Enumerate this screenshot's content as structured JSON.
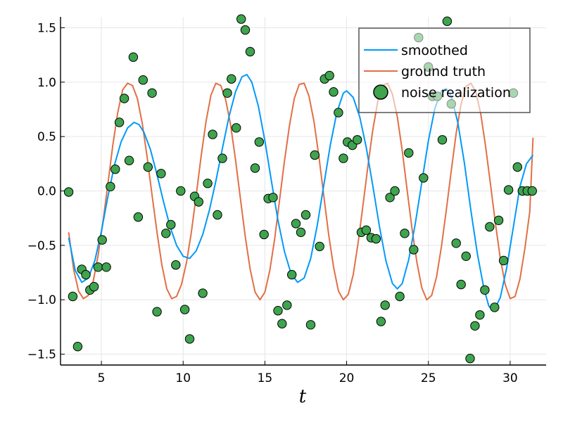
{
  "chart_data": {
    "type": "line",
    "title": "",
    "xlabel": "t",
    "ylabel": "",
    "xlim": [
      2.5,
      32.2
    ],
    "ylim": [
      -1.6,
      1.6
    ],
    "xticks": [
      5,
      10,
      15,
      20,
      25,
      30
    ],
    "xtick_labels": [
      "5",
      "10",
      "15",
      "20",
      "25",
      "30"
    ],
    "yticks": [
      -1.5,
      -1.0,
      -0.5,
      0.0,
      0.5,
      1.0,
      1.5
    ],
    "ytick_labels": [
      "−1.5",
      "−1.0",
      "−0.5",
      "0.0",
      "0.5",
      "1.0",
      "1.5"
    ],
    "grid": true,
    "legend_position": "top-right",
    "colors": {
      "smoothed": "#009AFA",
      "ground_truth": "#E26F46",
      "noise": "#3EA44E"
    },
    "series": [
      {
        "name": "smoothed",
        "kind": "line",
        "color": "#009AFA",
        "x": [
          3.0,
          3.4,
          3.8,
          4.2,
          4.6,
          5.0,
          5.4,
          5.8,
          6.2,
          6.6,
          7.0,
          7.3,
          7.6,
          8.0,
          8.4,
          8.8,
          9.2,
          9.6,
          10.0,
          10.4,
          10.8,
          11.2,
          11.6,
          12.0,
          12.4,
          12.8,
          13.2,
          13.6,
          13.9,
          14.2,
          14.6,
          15.0,
          15.4,
          15.8,
          16.2,
          16.6,
          17.0,
          17.4,
          17.8,
          18.2,
          18.6,
          19.0,
          19.4,
          19.8,
          20.0,
          20.4,
          20.8,
          21.2,
          21.6,
          22.0,
          22.4,
          22.8,
          23.1,
          23.4,
          23.8,
          24.2,
          24.6,
          25.0,
          25.4,
          25.8,
          26.1,
          26.4,
          26.8,
          27.2,
          27.6,
          28.0,
          28.4,
          28.7,
          29.0,
          29.4,
          29.8,
          30.2,
          30.6,
          31.0,
          31.4
        ],
        "y": [
          -0.43,
          -0.73,
          -0.84,
          -0.8,
          -0.64,
          -0.37,
          -0.05,
          0.24,
          0.45,
          0.58,
          0.63,
          0.61,
          0.54,
          0.38,
          0.15,
          -0.1,
          -0.33,
          -0.5,
          -0.6,
          -0.62,
          -0.55,
          -0.4,
          -0.18,
          0.09,
          0.39,
          0.68,
          0.91,
          1.05,
          1.07,
          1.0,
          0.78,
          0.46,
          0.09,
          -0.27,
          -0.56,
          -0.76,
          -0.84,
          -0.8,
          -0.62,
          -0.32,
          0.05,
          0.42,
          0.72,
          0.9,
          0.92,
          0.86,
          0.68,
          0.4,
          0.05,
          -0.32,
          -0.64,
          -0.85,
          -0.9,
          -0.85,
          -0.63,
          -0.3,
          0.08,
          0.46,
          0.76,
          0.92,
          0.94,
          0.87,
          0.63,
          0.26,
          -0.18,
          -0.58,
          -0.9,
          -1.06,
          -1.1,
          -0.98,
          -0.7,
          -0.33,
          0.04,
          0.25,
          0.33
        ]
      },
      {
        "name": "ground truth",
        "kind": "line",
        "color": "#E26F46",
        "x": [
          3.0,
          3.3,
          3.6,
          3.9,
          4.2,
          4.5,
          4.8,
          5.1,
          5.4,
          5.7,
          6.0,
          6.3,
          6.6,
          6.9,
          7.2,
          7.5,
          7.8,
          8.1,
          8.4,
          8.7,
          9.0,
          9.3,
          9.6,
          9.9,
          10.2,
          10.5,
          10.8,
          11.1,
          11.4,
          11.7,
          12.0,
          12.3,
          12.6,
          12.9,
          13.2,
          13.5,
          13.8,
          14.1,
          14.4,
          14.7,
          15.0,
          15.3,
          15.6,
          15.9,
          16.2,
          16.5,
          16.8,
          17.1,
          17.4,
          17.7,
          18.0,
          18.3,
          18.6,
          18.9,
          19.2,
          19.5,
          19.8,
          20.1,
          20.4,
          20.7,
          21.0,
          21.3,
          21.6,
          21.9,
          22.2,
          22.5,
          22.8,
          23.1,
          23.4,
          23.7,
          24.0,
          24.3,
          24.6,
          24.9,
          25.2,
          25.5,
          25.8,
          26.1,
          26.4,
          26.7,
          27.0,
          27.3,
          27.6,
          27.9,
          28.2,
          28.5,
          28.8,
          29.1,
          29.4,
          29.7,
          30.0,
          30.3,
          30.6,
          30.9,
          31.2,
          31.4
        ],
        "y": [
          -0.38,
          -0.72,
          -0.92,
          -0.99,
          -0.96,
          -0.83,
          -0.59,
          -0.28,
          0.07,
          0.42,
          0.72,
          0.93,
          0.99,
          0.97,
          0.85,
          0.62,
          0.31,
          -0.04,
          -0.38,
          -0.68,
          -0.9,
          -0.99,
          -0.97,
          -0.86,
          -0.66,
          -0.38,
          -0.04,
          0.32,
          0.64,
          0.88,
          0.99,
          0.97,
          0.84,
          0.61,
          0.29,
          -0.07,
          -0.42,
          -0.72,
          -0.93,
          -1.0,
          -0.93,
          -0.73,
          -0.44,
          -0.08,
          0.28,
          0.6,
          0.85,
          0.98,
          0.99,
          0.87,
          0.64,
          0.32,
          -0.04,
          -0.4,
          -0.7,
          -0.92,
          -1.0,
          -0.95,
          -0.77,
          -0.48,
          -0.13,
          0.23,
          0.56,
          0.82,
          0.97,
          0.99,
          0.89,
          0.68,
          0.37,
          0.01,
          -0.35,
          -0.66,
          -0.89,
          -1.0,
          -0.96,
          -0.79,
          -0.51,
          -0.17,
          0.19,
          0.53,
          0.8,
          0.96,
          0.99,
          0.91,
          0.71,
          0.41,
          0.06,
          -0.3,
          -0.62,
          -0.86,
          -0.99,
          -0.97,
          -0.81,
          -0.53,
          -0.19,
          0.49
        ]
      },
      {
        "name": "noise realization",
        "kind": "scatter",
        "color": "#3EA44E",
        "x": [
          3.0,
          3.25,
          3.55,
          3.8,
          4.05,
          4.3,
          4.55,
          4.8,
          5.05,
          5.3,
          5.55,
          5.85,
          6.1,
          6.4,
          6.7,
          6.95,
          7.25,
          7.55,
          7.85,
          8.1,
          8.4,
          8.65,
          8.95,
          9.25,
          9.55,
          9.85,
          10.1,
          10.4,
          10.7,
          10.95,
          11.2,
          11.5,
          11.8,
          12.1,
          12.4,
          12.7,
          12.95,
          13.25,
          13.55,
          13.8,
          14.1,
          14.4,
          14.65,
          14.95,
          15.2,
          15.5,
          15.8,
          16.05,
          16.35,
          16.65,
          16.9,
          17.2,
          17.5,
          17.8,
          18.05,
          18.35,
          18.65,
          18.95,
          19.2,
          19.5,
          19.8,
          20.05,
          20.35,
          20.65,
          20.9,
          21.2,
          21.5,
          21.8,
          22.1,
          22.35,
          22.65,
          22.95,
          23.25,
          23.55,
          23.8,
          24.1,
          24.4,
          24.7,
          25.0,
          25.25,
          25.55,
          25.85,
          26.15,
          26.4,
          26.7,
          27.0,
          27.3,
          27.55,
          27.85,
          28.15,
          28.45,
          28.75,
          29.05,
          29.3,
          29.6,
          29.9,
          30.2,
          30.45,
          30.75,
          31.05,
          31.35
        ],
        "y": [
          -0.01,
          -0.97,
          -1.43,
          -0.72,
          -0.77,
          -0.91,
          -0.88,
          -0.7,
          -0.45,
          -0.7,
          0.04,
          0.2,
          0.63,
          0.85,
          0.28,
          1.23,
          -0.24,
          1.02,
          0.22,
          0.9,
          -1.11,
          0.16,
          -0.39,
          -0.31,
          -0.68,
          0.0,
          -1.09,
          -1.36,
          -0.05,
          -0.1,
          -0.94,
          0.07,
          0.52,
          -0.22,
          0.3,
          0.9,
          1.03,
          0.58,
          1.58,
          1.48,
          1.28,
          0.21,
          0.45,
          -0.4,
          -0.07,
          -0.06,
          -1.1,
          -1.22,
          -1.05,
          -0.77,
          -0.3,
          -0.38,
          -0.22,
          -1.23,
          0.33,
          -0.51,
          1.03,
          1.06,
          0.91,
          0.72,
          0.3,
          0.45,
          0.42,
          0.47,
          -0.38,
          -0.36,
          -0.43,
          -0.44,
          -1.2,
          -1.05,
          -0.06,
          0.0,
          -0.97,
          -0.39,
          0.35,
          -0.54,
          1.41,
          0.12,
          1.14,
          0.87,
          0.87,
          0.47,
          1.56,
          0.8,
          -0.48,
          -0.86,
          -0.6,
          -1.54,
          -1.24,
          -1.14,
          -0.91,
          -0.33,
          -1.07,
          -0.27,
          -0.64,
          0.01,
          0.9,
          0.22,
          0.0,
          0.0,
          0.0
        ]
      }
    ],
    "legend": [
      {
        "label": "smoothed",
        "kind": "line",
        "color": "#009AFA"
      },
      {
        "label": "ground truth",
        "kind": "line",
        "color": "#E26F46"
      },
      {
        "label": "noise realization",
        "kind": "marker",
        "color": "#3EA44E"
      }
    ]
  }
}
